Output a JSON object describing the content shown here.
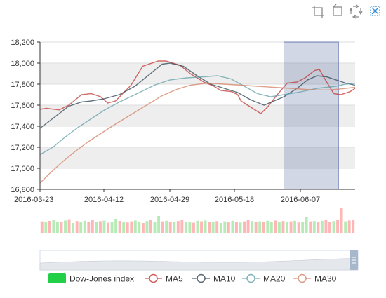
{
  "toolbox": {
    "icons": [
      "data-zoom-icon",
      "zoom-reset-icon",
      "restore-icon",
      "brush-clear-icon"
    ]
  },
  "legend": {
    "items": [
      {
        "label": "Dow-Jones index",
        "icon": "rect",
        "color": "#22d048"
      },
      {
        "label": "MA5",
        "icon": "circle",
        "color": "#c23531"
      },
      {
        "label": "MA10",
        "icon": "circle",
        "color": "#2f4554"
      },
      {
        "label": "MA20",
        "icon": "circle",
        "color": "#61a0a8"
      },
      {
        "label": "MA30",
        "icon": "circle",
        "color": "#d48265"
      }
    ]
  },
  "chart_data": {
    "type": "line",
    "x_tick_labels": [
      "2016-03-23",
      "2016-04-12",
      "2016-04-29",
      "2016-05-18",
      "2016-06-07"
    ],
    "x_range": [
      "2016-03-23",
      "2016-06-30"
    ],
    "ylim": [
      16800,
      18200
    ],
    "y_ticks": [
      16800,
      17000,
      17200,
      17400,
      17600,
      17800,
      18000,
      18200
    ],
    "y_tick_labels": [
      "16,800",
      "17,000",
      "17,200",
      "17,400",
      "17,600",
      "17,800",
      "18,000",
      "18,200"
    ],
    "grid": true,
    "split_area": true,
    "brush_selection": [
      "2016-06-02",
      "2016-06-23"
    ],
    "series": [
      {
        "name": "MA5",
        "color": "#c23531",
        "points": [
          [
            "2016-03-23",
            17560
          ],
          [
            "2016-03-25",
            17570
          ],
          [
            "2016-03-29",
            17555
          ],
          [
            "2016-04-01",
            17600
          ],
          [
            "2016-04-05",
            17700
          ],
          [
            "2016-04-08",
            17710
          ],
          [
            "2016-04-11",
            17680
          ],
          [
            "2016-04-13",
            17620
          ],
          [
            "2016-04-15",
            17640
          ],
          [
            "2016-04-19",
            17790
          ],
          [
            "2016-04-22",
            17970
          ],
          [
            "2016-04-26",
            18020
          ],
          [
            "2016-04-28",
            18020
          ],
          [
            "2016-05-02",
            17980
          ],
          [
            "2016-05-05",
            17900
          ],
          [
            "2016-05-09",
            17820
          ],
          [
            "2016-05-12",
            17780
          ],
          [
            "2016-05-14",
            17740
          ],
          [
            "2016-05-17",
            17730
          ],
          [
            "2016-05-19",
            17700
          ],
          [
            "2016-05-20",
            17640
          ],
          [
            "2016-05-23",
            17580
          ],
          [
            "2016-05-26",
            17520
          ],
          [
            "2016-05-28",
            17580
          ],
          [
            "2016-05-31",
            17700
          ],
          [
            "2016-06-03",
            17810
          ],
          [
            "2016-06-06",
            17820
          ],
          [
            "2016-06-09",
            17860
          ],
          [
            "2016-06-13",
            17930
          ],
          [
            "2016-06-15",
            17940
          ],
          [
            "2016-06-17",
            17860
          ],
          [
            "2016-06-21",
            17710
          ],
          [
            "2016-06-24",
            17700
          ],
          [
            "2016-06-28",
            17730
          ],
          [
            "2016-06-30",
            17760
          ]
        ]
      },
      {
        "name": "MA10",
        "color": "#2f4554",
        "points": [
          [
            "2016-03-23",
            17380
          ],
          [
            "2016-03-26",
            17450
          ],
          [
            "2016-03-29",
            17520
          ],
          [
            "2016-04-01",
            17590
          ],
          [
            "2016-04-05",
            17630
          ],
          [
            "2016-04-08",
            17640
          ],
          [
            "2016-04-12",
            17660
          ],
          [
            "2016-04-16",
            17700
          ],
          [
            "2016-04-20",
            17780
          ],
          [
            "2016-04-24",
            17900
          ],
          [
            "2016-04-27",
            17990
          ],
          [
            "2016-04-29",
            18000
          ],
          [
            "2016-05-03",
            17970
          ],
          [
            "2016-05-07",
            17880
          ],
          [
            "2016-05-11",
            17800
          ],
          [
            "2016-05-15",
            17760
          ],
          [
            "2016-05-19",
            17720
          ],
          [
            "2016-05-23",
            17650
          ],
          [
            "2016-05-27",
            17600
          ],
          [
            "2016-05-30",
            17640
          ],
          [
            "2016-06-02",
            17680
          ],
          [
            "2016-06-06",
            17760
          ],
          [
            "2016-06-10",
            17840
          ],
          [
            "2016-06-14",
            17880
          ],
          [
            "2016-06-18",
            17870
          ],
          [
            "2016-06-22",
            17840
          ],
          [
            "2016-06-26",
            17810
          ],
          [
            "2016-06-30",
            17790
          ]
        ]
      },
      {
        "name": "MA20",
        "color": "#61a0a8",
        "points": [
          [
            "2016-03-23",
            17130
          ],
          [
            "2016-03-27",
            17200
          ],
          [
            "2016-03-31",
            17300
          ],
          [
            "2016-04-04",
            17390
          ],
          [
            "2016-04-08",
            17470
          ],
          [
            "2016-04-12",
            17550
          ],
          [
            "2016-04-16",
            17630
          ],
          [
            "2016-04-20",
            17700
          ],
          [
            "2016-04-25",
            17790
          ],
          [
            "2016-04-29",
            17840
          ],
          [
            "2016-05-04",
            17860
          ],
          [
            "2016-05-09",
            17870
          ],
          [
            "2016-05-13",
            17880
          ],
          [
            "2016-05-17",
            17850
          ],
          [
            "2016-05-21",
            17780
          ],
          [
            "2016-05-25",
            17710
          ],
          [
            "2016-05-29",
            17680
          ],
          [
            "2016-06-02",
            17700
          ],
          [
            "2016-06-06",
            17720
          ],
          [
            "2016-06-10",
            17740
          ],
          [
            "2016-06-14",
            17760
          ],
          [
            "2016-06-18",
            17770
          ],
          [
            "2016-06-22",
            17780
          ],
          [
            "2016-06-26",
            17800
          ],
          [
            "2016-06-30",
            17810
          ]
        ]
      },
      {
        "name": "MA30",
        "color": "#d48265",
        "points": [
          [
            "2016-03-23",
            16860
          ],
          [
            "2016-03-26",
            16950
          ],
          [
            "2016-03-30",
            17060
          ],
          [
            "2016-04-03",
            17160
          ],
          [
            "2016-04-07",
            17250
          ],
          [
            "2016-04-11",
            17330
          ],
          [
            "2016-04-15",
            17420
          ],
          [
            "2016-04-19",
            17510
          ],
          [
            "2016-04-23",
            17600
          ],
          [
            "2016-04-27",
            17690
          ],
          [
            "2016-05-01",
            17750
          ],
          [
            "2016-05-05",
            17790
          ],
          [
            "2016-05-10",
            17810
          ],
          [
            "2016-05-15",
            17800
          ],
          [
            "2016-05-20",
            17790
          ],
          [
            "2016-05-25",
            17780
          ],
          [
            "2016-05-30",
            17770
          ],
          [
            "2016-06-04",
            17760
          ],
          [
            "2016-06-09",
            17750
          ],
          [
            "2016-06-14",
            17745
          ],
          [
            "2016-06-19",
            17745
          ],
          [
            "2016-06-24",
            17755
          ],
          [
            "2016-06-30",
            17770
          ]
        ]
      }
    ],
    "volume_colors": {
      "up": "#ffb6b6",
      "down": "#b6ebb6"
    },
    "volume": [
      0.82,
      0.78,
      0.85,
      0.9,
      0.8,
      0.76,
      0.88,
      0.92,
      0.7,
      0.84,
      0.8,
      0.86,
      0.75,
      0.9,
      0.78,
      0.83,
      0.87,
      0.72,
      0.8,
      0.95,
      0.85,
      0.78,
      0.74,
      0.82,
      0.88,
      0.8,
      0.7,
      0.84,
      0.9,
      0.78,
      1.2,
      0.82,
      0.86,
      0.8,
      0.76,
      0.84,
      0.9,
      0.8,
      0.78,
      0.72,
      0.86,
      0.82,
      0.88,
      0.76,
      0.8,
      0.84,
      0.7,
      0.82,
      0.78,
      0.86,
      0.8,
      0.74,
      0.82,
      0.9,
      0.84,
      0.78,
      0.82,
      0.8,
      0.86,
      0.76,
      0.88,
      0.8,
      0.84,
      0.78,
      0.82,
      0.86,
      0.74,
      0.8,
      1.1,
      0.82,
      0.84,
      0.78,
      0.86,
      0.9,
      0.8,
      0.84,
      0.9,
      1.75,
      0.82,
      0.88,
      0.9
    ],
    "volume_up": [
      true,
      false,
      true,
      false,
      false,
      true,
      false,
      true,
      false,
      true,
      false,
      false,
      true,
      true,
      false,
      true,
      false,
      true,
      false,
      false,
      true,
      false,
      true,
      true,
      false,
      false,
      true,
      false,
      true,
      false,
      false,
      true,
      false,
      true,
      false,
      true,
      true,
      false,
      false,
      true,
      false,
      true,
      false,
      true,
      false,
      true,
      false,
      false,
      true,
      false,
      true,
      false,
      true,
      true,
      false,
      true,
      false,
      true,
      false,
      false,
      true,
      false,
      true,
      false,
      true,
      false,
      true,
      false,
      false,
      true,
      false,
      true,
      false,
      true,
      true,
      false,
      true,
      true,
      false,
      true,
      true
    ],
    "data_zoom": {
      "start": 0,
      "end": 100
    }
  }
}
